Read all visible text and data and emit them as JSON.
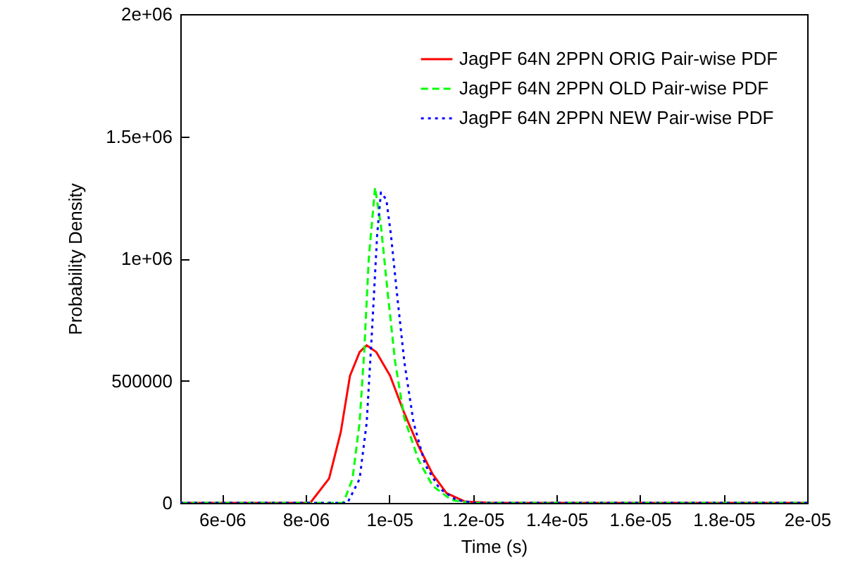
{
  "chart_data": {
    "type": "line",
    "xlabel": "Time (s)",
    "ylabel": "Probability Density",
    "xlim": [
      5e-06,
      2e-05
    ],
    "ylim": [
      0,
      2000000
    ],
    "xticks": [
      {
        "value": 6e-06,
        "label": "6e-06"
      },
      {
        "value": 8e-06,
        "label": "8e-06"
      },
      {
        "value": 1e-05,
        "label": "1e-05"
      },
      {
        "value": 1.2e-05,
        "label": "1.2e-05"
      },
      {
        "value": 1.4e-05,
        "label": "1.4e-05"
      },
      {
        "value": 1.6e-05,
        "label": "1.6e-05"
      },
      {
        "value": 1.8e-05,
        "label": "1.8e-05"
      },
      {
        "value": 2e-05,
        "label": "2e-05"
      }
    ],
    "yticks": [
      0,
      500000,
      {
        "value": 1000000,
        "label": "1e+06"
      },
      {
        "value": 1500000,
        "label": "1.5e+06"
      },
      {
        "value": 2000000,
        "label": "2e+06"
      }
    ],
    "grid": false,
    "legend": "top right",
    "series": [
      {
        "name": "JagPF 64N 2PPN ORIG Pair-wise PDF",
        "color": "#ff0000",
        "line_style": "solid",
        "x": [
          5e-06,
          8.11e-06,
          8.56e-06,
          8.84e-06,
          9.06e-06,
          9.29e-06,
          9.46e-06,
          9.69e-06,
          1.002e-05,
          1.036e-05,
          1.07e-05,
          1.104e-05,
          1.137e-05,
          1.182e-05,
          1.25e-05,
          2e-05
        ],
        "values": [
          0,
          0,
          100000,
          290000,
          520000,
          617000,
          645000,
          617000,
          520000,
          367000,
          232000,
          117000,
          40000,
          5000,
          0,
          0
        ]
      },
      {
        "name": "JagPF 64N 2PPN OLD Pair-wise PDF",
        "color": "#00ff00",
        "line_style": "dashed",
        "x": [
          5e-06,
          8.9e-06,
          9.12e-06,
          9.29e-06,
          9.4e-06,
          9.51e-06,
          9.66e-06,
          9.8e-06,
          9.97e-06,
          1.014e-05,
          1.036e-05,
          1.07e-05,
          1.104e-05,
          1.149e-05,
          1.194e-05,
          2e-05
        ],
        "values": [
          0,
          0,
          98000,
          329000,
          617000,
          1001000,
          1290000,
          1135000,
          847000,
          578000,
          347000,
          175000,
          69000,
          12000,
          0,
          0
        ]
      },
      {
        "name": "JagPF 64N 2PPN NEW Pair-wise PDF",
        "color": "#0000ff",
        "line_style": "dotted",
        "x": [
          5e-06,
          9e-06,
          9.29e-06,
          9.46e-06,
          9.59e-06,
          9.71e-06,
          9.8e-06,
          9.93e-06,
          1.004e-05,
          1.019e-05,
          1.036e-05,
          1.058e-05,
          1.086e-05,
          1.12e-05,
          1.16e-05,
          1.205e-05,
          2e-05
        ],
        "values": [
          0,
          0,
          98000,
          329000,
          713000,
          1097000,
          1270000,
          1241000,
          1097000,
          847000,
          578000,
          329000,
          156000,
          59000,
          12000,
          0,
          0
        ]
      }
    ]
  }
}
